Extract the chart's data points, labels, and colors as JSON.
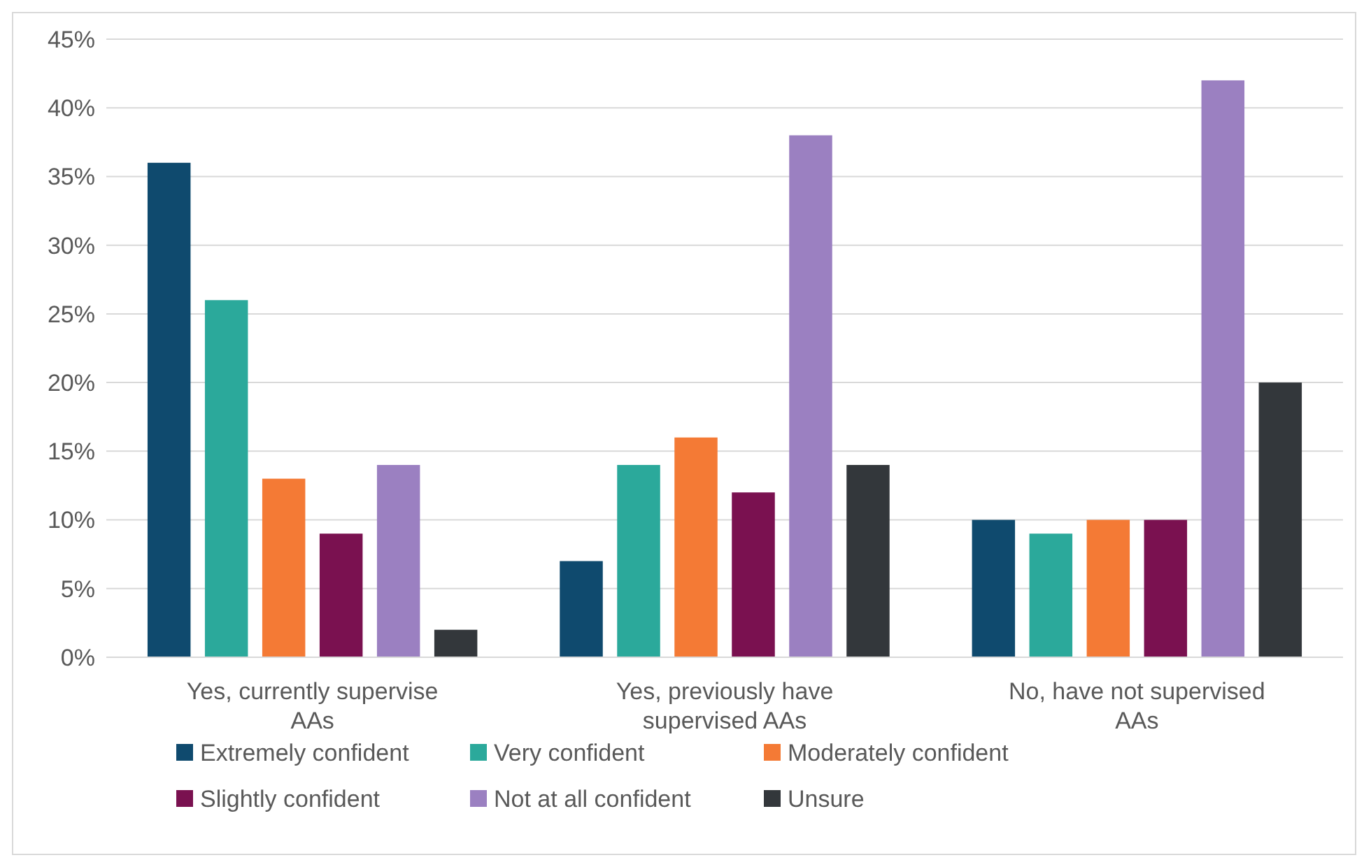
{
  "chart_data": {
    "type": "bar",
    "categories": [
      "Yes, currently supervise AAs",
      "Yes, previously have supervised AAs",
      "No, have not supervised AAs"
    ],
    "series": [
      {
        "name": "Extremely confident",
        "color": "#0f4a6e",
        "values": [
          36,
          7,
          10
        ]
      },
      {
        "name": "Very confident",
        "color": "#2ba99b",
        "values": [
          26,
          14,
          9
        ]
      },
      {
        "name": "Moderately confident",
        "color": "#f47a35",
        "values": [
          13,
          16,
          10
        ]
      },
      {
        "name": "Slightly confident",
        "color": "#7a1150",
        "values": [
          9,
          12,
          10
        ]
      },
      {
        "name": "Not at all confident",
        "color": "#9b80c1",
        "values": [
          14,
          38,
          42
        ]
      },
      {
        "name": "Unsure",
        "color": "#33373b",
        "values": [
          2,
          14,
          20
        ]
      }
    ],
    "ylim": [
      0,
      45
    ],
    "yticks": [
      {
        "value": 0,
        "label": "0%"
      },
      {
        "value": 5,
        "label": "5%"
      },
      {
        "value": 10,
        "label": "10%"
      },
      {
        "value": 15,
        "label": "15%"
      },
      {
        "value": 20,
        "label": "20%"
      },
      {
        "value": 25,
        "label": "25%"
      },
      {
        "value": 30,
        "label": "30%"
      },
      {
        "value": 35,
        "label": "35%"
      },
      {
        "value": 40,
        "label": "40%"
      },
      {
        "value": 45,
        "label": "45%"
      }
    ],
    "grid": "y",
    "legend": "bottom"
  }
}
